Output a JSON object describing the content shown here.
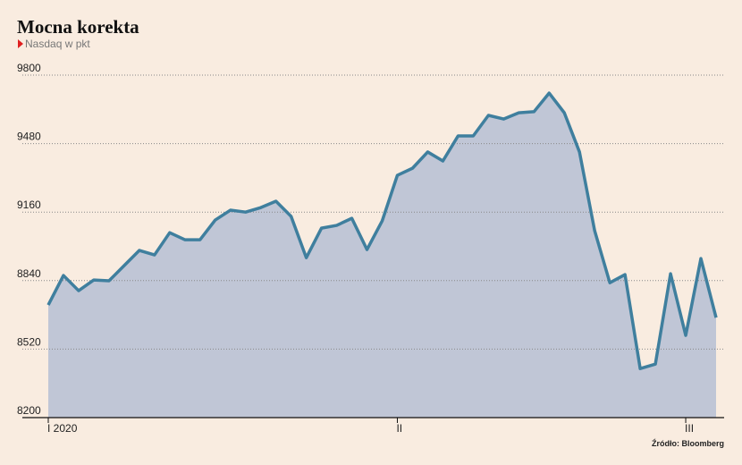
{
  "chart_data": {
    "type": "area",
    "title": "Mocna korekta",
    "subtitle": "Nasdaq w pkt",
    "source": "Źródło: Bloomberg",
    "categories": [
      "I 2020",
      null,
      null,
      null,
      null,
      null,
      null,
      null,
      null,
      null,
      null,
      null,
      null,
      null,
      null,
      null,
      null,
      null,
      null,
      null,
      null,
      null,
      null,
      "II",
      null,
      null,
      null,
      null,
      null,
      null,
      null,
      null,
      null,
      null,
      null,
      null,
      null,
      null,
      null,
      null,
      null,
      null,
      "III",
      null,
      null
    ],
    "series": [
      {
        "name": "Nasdaq",
        "color": "#3f7f9e",
        "fill": "#c0c6d6",
        "values": [
          8726,
          8864,
          8793,
          8843,
          8839,
          8910,
          8981,
          8960,
          9064,
          9031,
          9031,
          9123,
          9169,
          9160,
          9181,
          9211,
          9140,
          8947,
          9085,
          9098,
          9131,
          8985,
          9119,
          9332,
          9365,
          9441,
          9399,
          9516,
          9516,
          9612,
          9595,
          9624,
          9629,
          9716,
          9624,
          9441,
          9073,
          8830,
          8868,
          8429,
          8450,
          8872,
          8584,
          8943,
          8667
        ]
      }
    ],
    "ylim": [
      8200,
      9800
    ],
    "yticks": [
      8200,
      8520,
      8840,
      9160,
      9480,
      9800
    ],
    "grid": true
  }
}
